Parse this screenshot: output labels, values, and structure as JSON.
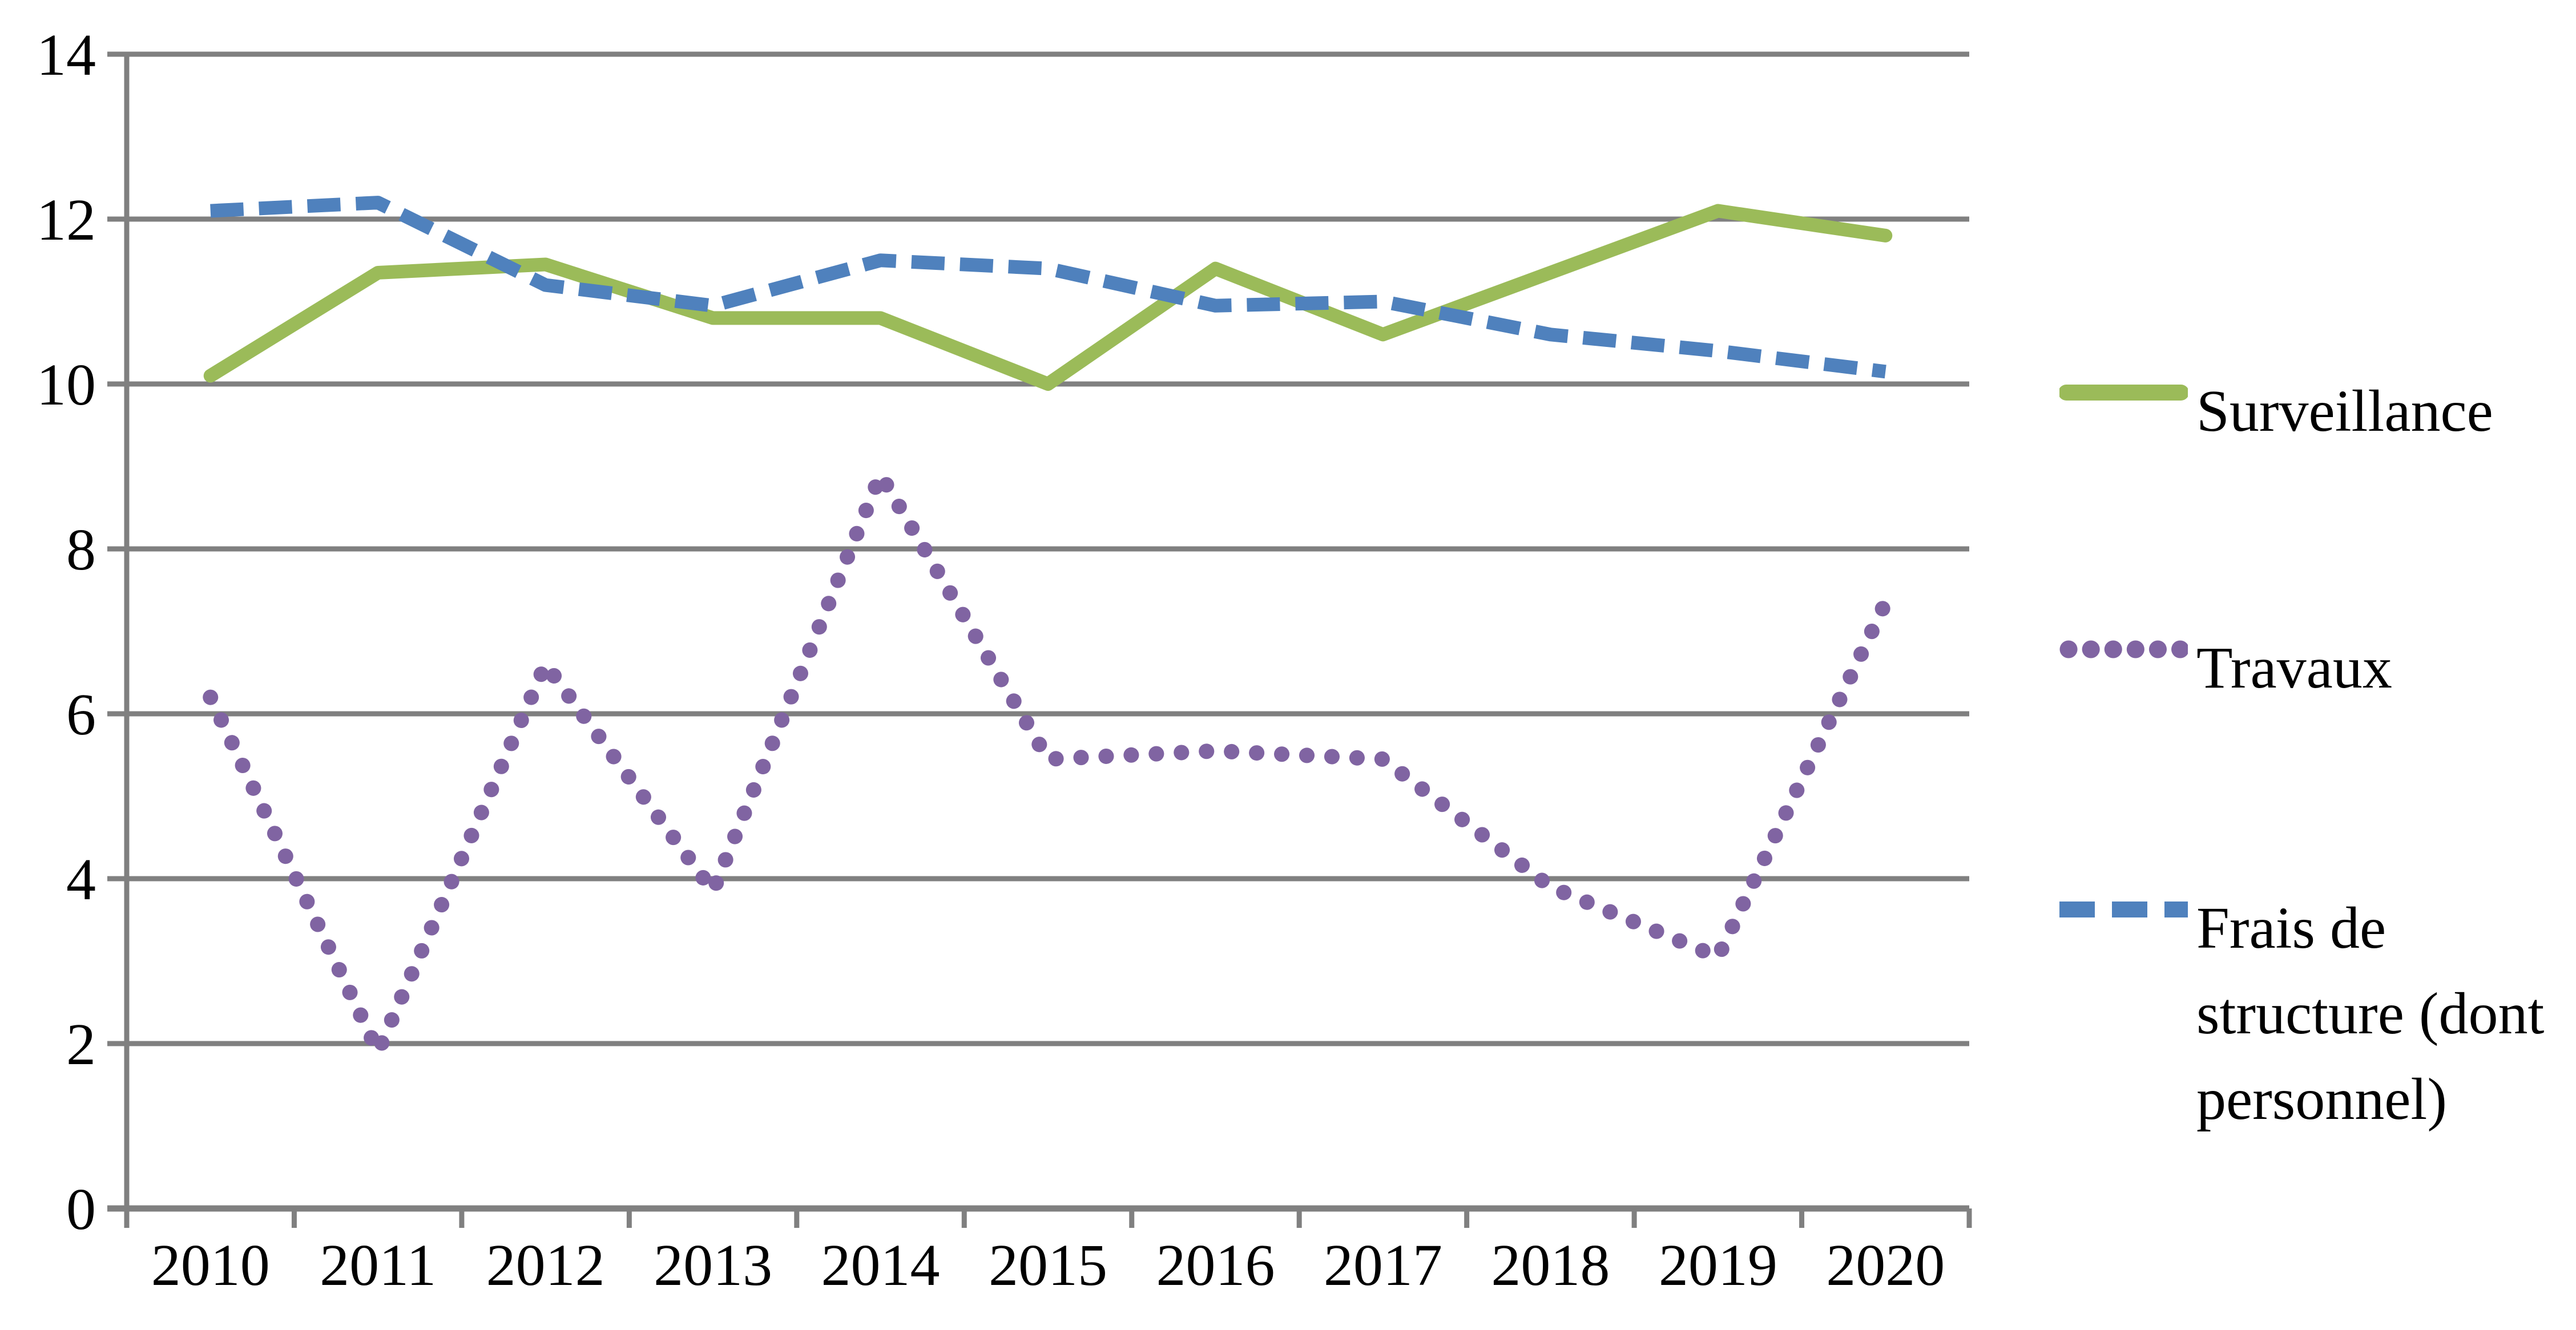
{
  "chart_data": {
    "type": "line",
    "title": "",
    "xlabel": "",
    "ylabel": "",
    "categories": [
      "2010",
      "2011",
      "2012",
      "2013",
      "2014",
      "2015",
      "2016",
      "2017",
      "2018",
      "2019",
      "2020"
    ],
    "series": [
      {
        "name": "Surveillance",
        "color": "#9BBB59",
        "style": "solid",
        "values": [
          10.1,
          11.35,
          11.45,
          10.8,
          10.8,
          10.0,
          11.4,
          10.6,
          11.35,
          12.1,
          11.8
        ]
      },
      {
        "name": "Travaux",
        "color": "#8064A2",
        "style": "dotted",
        "values": [
          6.2,
          1.9,
          6.6,
          3.85,
          8.9,
          5.45,
          5.55,
          5.45,
          3.9,
          3.05,
          7.35
        ]
      },
      {
        "name": "Frais de structure (dont personnel)",
        "color": "#4F81BD",
        "style": "dashed",
        "values": [
          12.1,
          12.2,
          11.2,
          10.95,
          11.5,
          11.4,
          10.95,
          11.0,
          10.6,
          10.4,
          10.15
        ]
      }
    ],
    "ylim": [
      0,
      14
    ],
    "ytick_step": 2,
    "y_ticks": [
      "0",
      "2",
      "4",
      "6",
      "8",
      "10",
      "12",
      "14"
    ],
    "grid": "horizontal-only",
    "legend_position": "right-middle",
    "colors": {
      "gridline": "#808080",
      "axis": "#808080",
      "text": "#000000",
      "background": "#FFFFFF"
    }
  },
  "legend": {
    "items": [
      {
        "label": "Surveillance",
        "display": "Surveillance"
      },
      {
        "label": "Travaux",
        "display": "Travaux"
      },
      {
        "label": "Frais de structure (dont personnel)",
        "display": "Frais de\nstructure (dont\npersonnel)"
      }
    ]
  }
}
